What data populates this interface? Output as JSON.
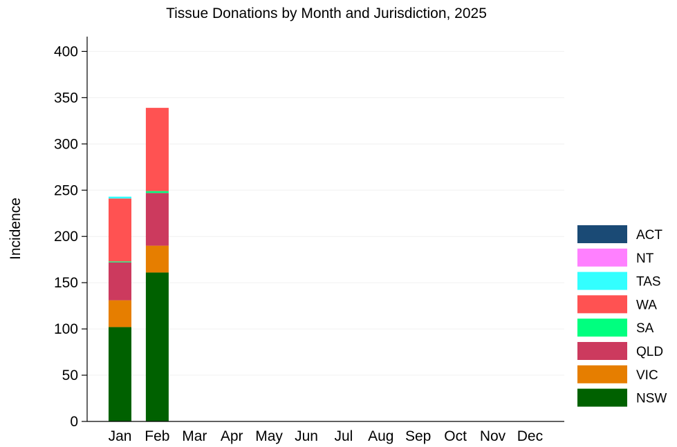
{
  "chart_data": {
    "type": "bar",
    "stacked": true,
    "title": "Tissue Donations by Month and Jurisdiction, 2025",
    "xlabel": "",
    "ylabel": "Incidence",
    "ylim": [
      0,
      416
    ],
    "yticks": [
      0,
      50,
      100,
      150,
      200,
      250,
      300,
      350,
      400
    ],
    "grid": "horizontal",
    "legend_position": "right",
    "categories": [
      "Jan",
      "Feb",
      "Mar",
      "Apr",
      "May",
      "Jun",
      "Jul",
      "Aug",
      "Sep",
      "Oct",
      "Nov",
      "Dec"
    ],
    "series": [
      {
        "name": "NSW",
        "color": "#006100",
        "values": [
          102,
          161,
          null,
          null,
          null,
          null,
          null,
          null,
          null,
          null,
          null,
          null
        ]
      },
      {
        "name": "VIC",
        "color": "#e67e00",
        "values": [
          29,
          29,
          null,
          null,
          null,
          null,
          null,
          null,
          null,
          null,
          null,
          null
        ]
      },
      {
        "name": "QLD",
        "color": "#cc3a5e",
        "values": [
          41,
          57,
          null,
          null,
          null,
          null,
          null,
          null,
          null,
          null,
          null,
          null
        ]
      },
      {
        "name": "SA",
        "color": "#00ff7f",
        "values": [
          1,
          2,
          null,
          null,
          null,
          null,
          null,
          null,
          null,
          null,
          null,
          null
        ]
      },
      {
        "name": "WA",
        "color": "#ff5252",
        "values": [
          68,
          90,
          null,
          null,
          null,
          null,
          null,
          null,
          null,
          null,
          null,
          null
        ]
      },
      {
        "name": "TAS",
        "color": "#33ffff",
        "values": [
          2,
          0,
          null,
          null,
          null,
          null,
          null,
          null,
          null,
          null,
          null,
          null
        ]
      },
      {
        "name": "NT",
        "color": "#ff80ff",
        "values": [
          0,
          0,
          null,
          null,
          null,
          null,
          null,
          null,
          null,
          null,
          null,
          null
        ]
      },
      {
        "name": "ACT",
        "color": "#1a4a75",
        "values": [
          0,
          0,
          null,
          null,
          null,
          null,
          null,
          null,
          null,
          null,
          null,
          null
        ]
      }
    ]
  }
}
